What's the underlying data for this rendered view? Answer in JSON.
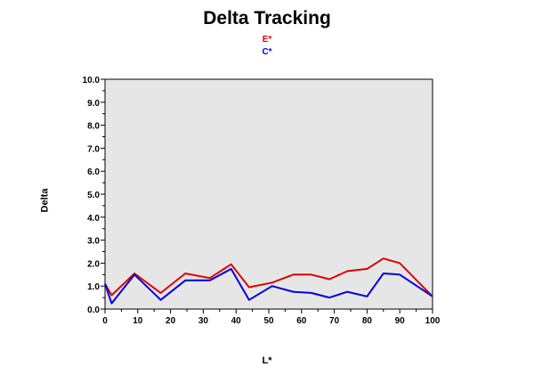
{
  "chart_data": {
    "type": "line",
    "title": "Delta Tracking",
    "xlabel": "L*",
    "ylabel": "Delta",
    "xlim": [
      0,
      100
    ],
    "ylim": [
      0,
      10
    ],
    "xticks": [
      "0",
      "10",
      "20",
      "30",
      "40",
      "50",
      "60",
      "70",
      "80",
      "90",
      "100"
    ],
    "yticks": [
      "0.0",
      "1.0",
      "2.0",
      "3.0",
      "4.0",
      "5.0",
      "6.0",
      "7.0",
      "8.0",
      "9.0",
      "10.0"
    ],
    "legend_position": "top-center",
    "plot_background": "#e6e6e6",
    "series": [
      {
        "name": "E*",
        "color": "#e00000",
        "x": [
          0,
          2,
          9,
          17,
          24.5,
          32,
          38.5,
          44,
          51,
          57.5,
          63,
          68.5,
          74,
          80,
          85,
          90,
          100
        ],
        "y": [
          1.1,
          0.6,
          1.55,
          0.7,
          1.55,
          1.35,
          1.95,
          0.95,
          1.15,
          1.5,
          1.5,
          1.3,
          1.65,
          1.75,
          2.2,
          2.0,
          0.55
        ]
      },
      {
        "name": "C*",
        "color": "#0000e0",
        "x": [
          0,
          2,
          9,
          17,
          24.5,
          32,
          38.5,
          44,
          51,
          57.5,
          63,
          68.5,
          74,
          80,
          85,
          90,
          100
        ],
        "y": [
          1.1,
          0.25,
          1.5,
          0.4,
          1.25,
          1.25,
          1.75,
          0.4,
          1.0,
          0.75,
          0.7,
          0.5,
          0.75,
          0.55,
          1.55,
          1.5,
          0.55
        ]
      }
    ]
  }
}
